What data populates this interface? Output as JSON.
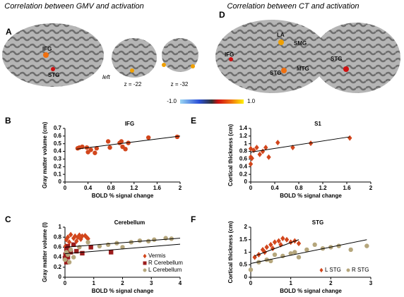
{
  "figure": {
    "title_left": "Correlation between GMV and activation",
    "title_right": "Correlation between CT and activation",
    "letter_left": "A",
    "letter_right": "D",
    "left_labels": [
      "IFG",
      "STG"
    ],
    "side": "left",
    "slices": [
      "z = -22",
      "z = -32"
    ],
    "right_labels": [
      "LA",
      "SMG",
      "IFG",
      "STG",
      "MTG",
      "STG"
    ],
    "colorbar": [
      "-1.0",
      "1.0"
    ]
  },
  "chart_data": [
    {
      "type": "scatter",
      "panel": "B",
      "title": "IFG",
      "x_label": "BOLD % signal change",
      "y_label": "Gray matter volume (cm)",
      "xlim": [
        0,
        2
      ],
      "xticks": [
        0,
        0.4,
        0.8,
        1.2,
        1.6,
        2
      ],
      "ylim": [
        0,
        0.7
      ],
      "yticks": [
        0,
        0.1,
        0.2,
        0.3,
        0.4,
        0.5,
        0.6,
        0.7
      ],
      "color": "#d2461c",
      "marker": "circle",
      "x": [
        0.22,
        0.25,
        0.3,
        0.38,
        0.4,
        0.45,
        0.52,
        0.55,
        0.75,
        0.78,
        0.95,
        0.98,
        1.0,
        1.05,
        1.1,
        1.45,
        1.95
      ],
      "values": [
        0.44,
        0.45,
        0.46,
        0.45,
        0.39,
        0.42,
        0.38,
        0.44,
        0.53,
        0.45,
        0.51,
        0.53,
        0.46,
        0.43,
        0.51,
        0.58,
        0.59
      ],
      "trendlines": [
        {
          "x": [
            0.2,
            2
          ],
          "y": [
            0.43,
            0.6
          ]
        }
      ]
    },
    {
      "type": "scatter",
      "panel": "E",
      "title": "S1",
      "x_label": "BOLD % signal change",
      "y_label": "Cortical thickness (cm)",
      "xlim": [
        0,
        2
      ],
      "xticks": [
        0,
        0.4,
        0.8,
        1.2,
        1.6,
        2
      ],
      "ylim": [
        0,
        1.4
      ],
      "yticks": [
        0,
        0.2,
        0.4,
        0.6,
        0.8,
        1,
        1.2,
        1.4
      ],
      "color": "#d2461c",
      "marker": "diamond",
      "x": [
        0,
        0,
        0,
        0.02,
        0.05,
        0.1,
        0.15,
        0.2,
        0.25,
        0.3,
        0.45,
        0.7,
        1.0,
        1.65
      ],
      "values": [
        0.47,
        0.65,
        0.87,
        0.62,
        0.83,
        0.9,
        0.72,
        0.8,
        0.9,
        0.65,
        1.03,
        0.9,
        1.01,
        1.15
      ],
      "trendlines": [
        {
          "x": [
            0,
            1.65
          ],
          "y": [
            0.78,
            1.18
          ]
        }
      ]
    },
    {
      "type": "scatter",
      "panel": "C",
      "title": "Cerebellum",
      "x_label": "BOLD % signal change",
      "y_label": "Gray matter volume (l)",
      "xlim": [
        0,
        4
      ],
      "xticks": [
        0,
        1,
        2,
        3,
        4
      ],
      "ylim": [
        0,
        1
      ],
      "yticks": [
        0,
        0.2,
        0.4,
        0.6,
        0.8,
        1
      ],
      "legend": "lower right",
      "series": [
        {
          "name": "Vermis",
          "color": "#d2461c",
          "marker": "diamond",
          "x": [
            0.02,
            0.05,
            0.1,
            0.15,
            0.2,
            0.3,
            0.35,
            0.4,
            0.45,
            0.5,
            0.55,
            0.6,
            0.7,
            0.75,
            0.8
          ],
          "values": [
            0.62,
            0.75,
            0.8,
            0.7,
            0.85,
            0.78,
            0.82,
            0.72,
            0.8,
            0.84,
            0.76,
            0.82,
            0.83,
            0.8,
            0.77
          ]
        },
        {
          "name": "R Cerebellum",
          "color": "#9b1c1c",
          "marker": "square",
          "x": [
            0,
            0.02,
            0.05,
            0.1,
            0.1,
            0.2,
            0.3,
            0.4,
            0.6,
            0.9,
            1.6,
            0.05
          ],
          "values": [
            0.38,
            0.45,
            0.55,
            0.4,
            0.62,
            0.5,
            0.65,
            0.52,
            0.48,
            0.6,
            0.5,
            0.3
          ]
        },
        {
          "name": "L Cerebellum",
          "color": "#b5a67c",
          "marker": "circle",
          "x": [
            0,
            0.05,
            0.1,
            0.2,
            0.3,
            0.5,
            0.8,
            1.2,
            1.5,
            1.8,
            2.0,
            2.3,
            2.6,
            2.9,
            3.1,
            3.5,
            3.7,
            0.15
          ],
          "values": [
            0.35,
            0.5,
            0.45,
            0.55,
            0.4,
            0.6,
            0.7,
            0.62,
            0.65,
            0.68,
            0.6,
            0.7,
            0.73,
            0.72,
            0.75,
            0.78,
            0.77,
            0.3
          ]
        }
      ],
      "trendlines": [
        {
          "x": [
            0,
            4
          ],
          "y": [
            0.6,
            0.78
          ]
        },
        {
          "x": [
            0,
            4
          ],
          "y": [
            0.47,
            0.66
          ]
        }
      ]
    },
    {
      "type": "scatter",
      "panel": "F",
      "title": "STG",
      "x_label": "BOLD % signal change",
      "y_label": "Cortical thickness (cm)",
      "xlim": [
        0,
        3
      ],
      "xticks": [
        0,
        1,
        2,
        3
      ],
      "ylim": [
        0,
        2
      ],
      "yticks": [
        0,
        0.5,
        1,
        1.5,
        2
      ],
      "legend": "lower right",
      "series": [
        {
          "name": "L STG",
          "color": "#d2461c",
          "marker": "diamond",
          "x": [
            0.1,
            0.2,
            0.3,
            0.35,
            0.4,
            0.5,
            0.55,
            0.6,
            0.7,
            0.75,
            0.8,
            0.9,
            1.0,
            1.1,
            1.2
          ],
          "values": [
            0.8,
            0.9,
            1.1,
            1.0,
            1.2,
            1.3,
            1.15,
            1.4,
            1.45,
            1.3,
            1.55,
            1.5,
            1.4,
            1.45,
            1.35
          ]
        },
        {
          "name": "R STG",
          "color": "#b5a67c",
          "marker": "circle",
          "x": [
            0,
            0.2,
            0.4,
            0.5,
            0.6,
            0.8,
            1.0,
            1.1,
            1.2,
            1.4,
            1.6,
            1.8,
            2.0,
            2.2,
            2.5,
            2.9
          ],
          "values": [
            0.3,
            0.6,
            0.7,
            0.65,
            0.9,
            0.85,
            0.95,
            1.0,
            0.8,
            1.1,
            1.3,
            1.15,
            1.2,
            1.25,
            1.1,
            1.25
          ]
        }
      ],
      "trendlines": [
        {
          "x": [
            0.1,
            1.2
          ],
          "y": [
            0.85,
            1.5
          ]
        },
        {
          "x": [
            0,
            2.9
          ],
          "y": [
            0.55,
            1.5
          ]
        }
      ]
    }
  ]
}
